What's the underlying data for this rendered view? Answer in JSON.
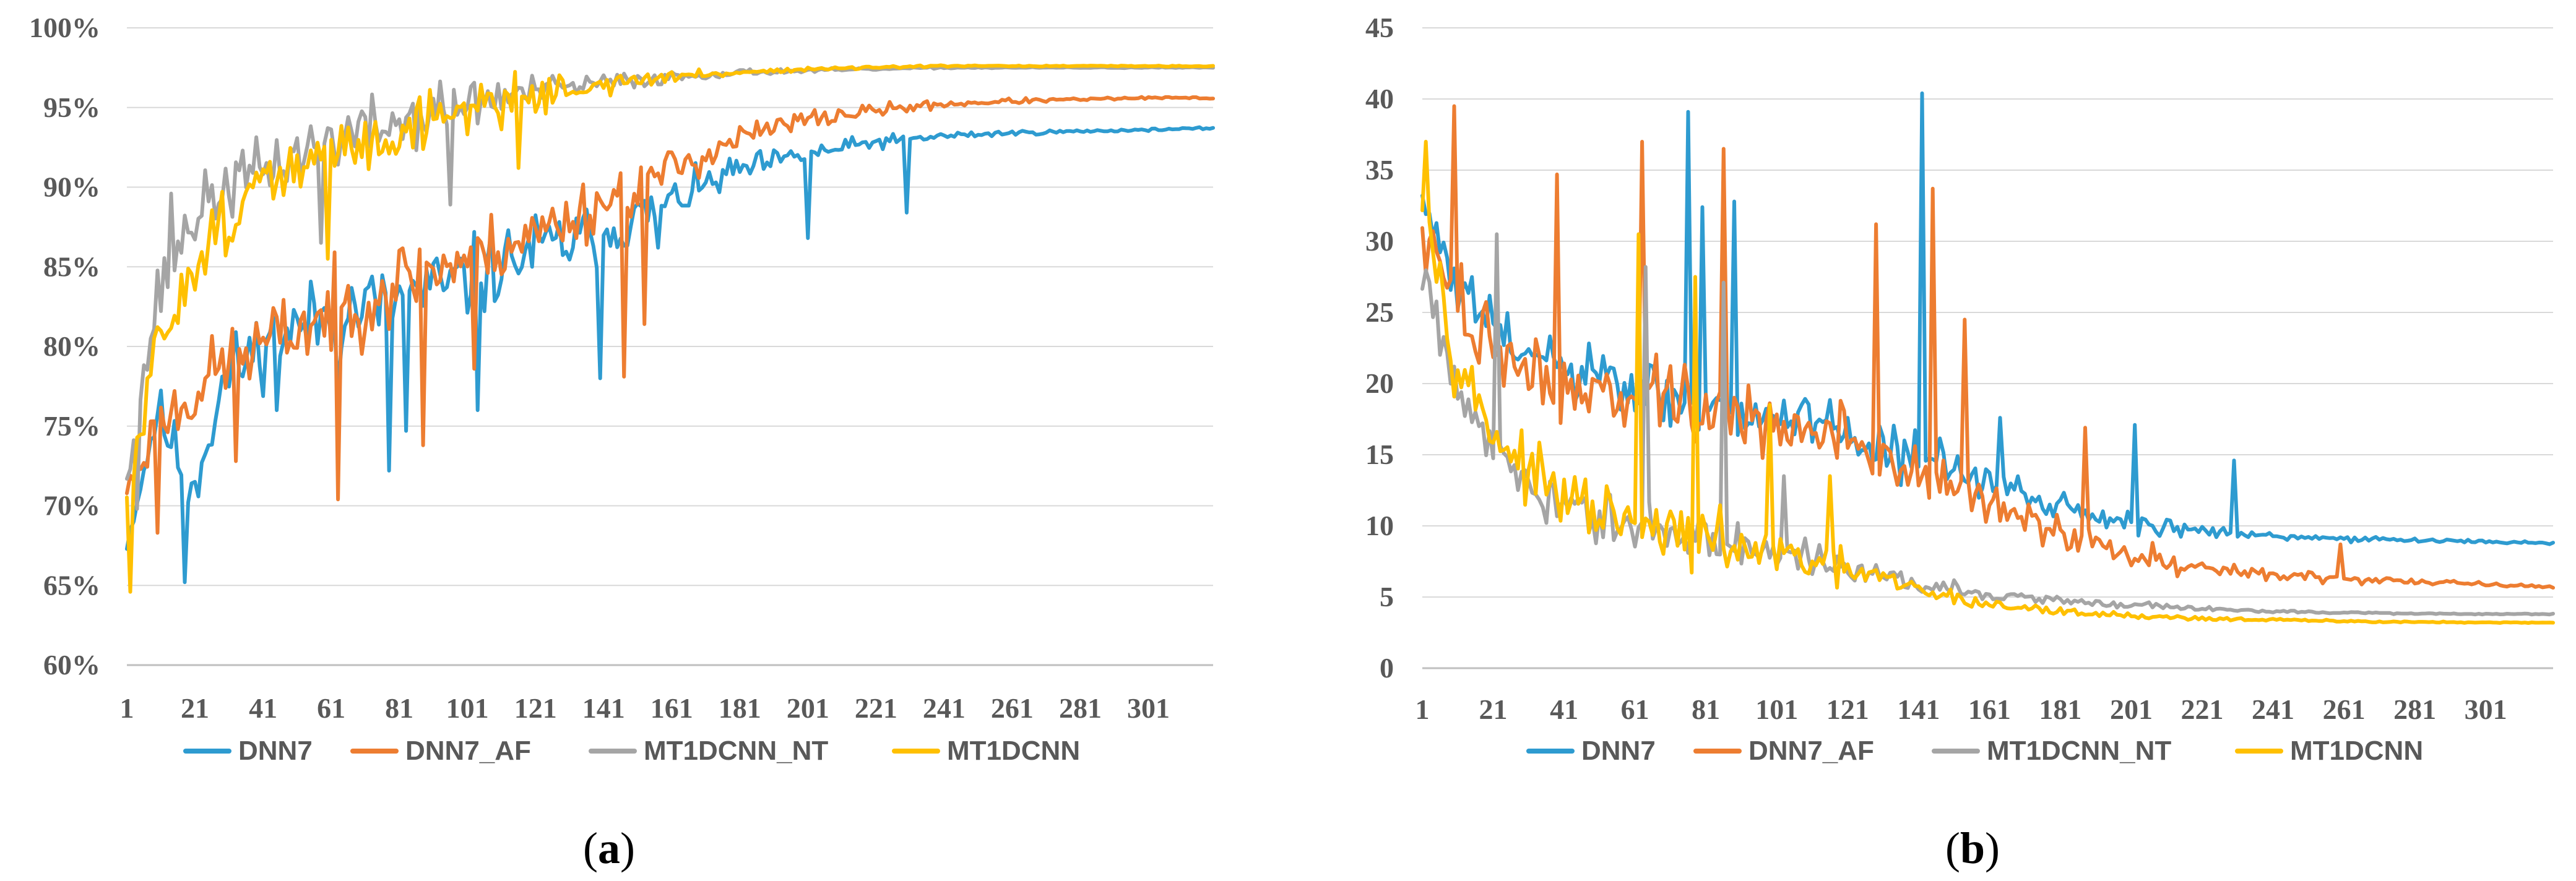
{
  "colors": {
    "DNN7": "#2e9bd0",
    "DNN7_AF": "#ed7d31",
    "MT1DCNN_NT": "#a5a5a5",
    "MT1DCNN": "#ffc000"
  },
  "chart_data": [
    {
      "id": "a",
      "type": "line",
      "panel_label": "a",
      "title": "",
      "xlabel": "",
      "ylabel": "",
      "x_range": [
        1,
        320
      ],
      "x_ticks": [
        "1",
        "21",
        "41",
        "61",
        "81",
        "101",
        "121",
        "141",
        "161",
        "181",
        "201",
        "221",
        "241",
        "261",
        "281",
        "301"
      ],
      "ylim": [
        60,
        100
      ],
      "y_ticks": [
        60,
        65,
        70,
        75,
        80,
        85,
        90,
        95,
        100
      ],
      "y_tick_labels": [
        "60%",
        "65%",
        "70%",
        "75%",
        "80%",
        "85%",
        "90%",
        "95%",
        "100%"
      ],
      "legend": [
        "DNN7",
        "DNN7_AF",
        "MT1DCNN_NT",
        "MT1DCNN"
      ],
      "legend_position": "bottom",
      "series": [
        {
          "name": "DNN7",
          "key": "DNN7",
          "x": [
            1,
            10,
            20,
            30,
            40,
            60,
            80,
            100,
            120,
            140,
            160,
            180,
            200,
            220,
            240,
            260,
            280,
            300,
            320
          ],
          "values": [
            67.5,
            76,
            71,
            78,
            80,
            82,
            83,
            84,
            86,
            87,
            89,
            91,
            92,
            92.8,
            93.2,
            93.4,
            93.5,
            93.6,
            93.7
          ],
          "noise": [
            0.5,
            2.5,
            3.5,
            3.5,
            3.5,
            4,
            4,
            4,
            3.5,
            3,
            2,
            1.5,
            1,
            0.7,
            0.4,
            0.25,
            0.15,
            0.1,
            0.1
          ],
          "seed": 11,
          "dips": [
            [
              18,
              65.2
            ],
            [
              45,
              76
            ],
            [
              63,
              77.5
            ],
            [
              78,
              72.2
            ],
            [
              83,
              74.7
            ],
            [
              104,
              76
            ],
            [
              140,
              78
            ],
            [
              157,
              86.2
            ],
            [
              201,
              86.8
            ],
            [
              230,
              88.4
            ]
          ]
        },
        {
          "name": "DNN7_AF",
          "key": "DNN7_AF",
          "x": [
            1,
            10,
            20,
            30,
            40,
            60,
            80,
            100,
            120,
            140,
            160,
            180,
            200,
            220,
            240,
            260,
            280,
            300,
            320
          ],
          "values": [
            71,
            75,
            77,
            79,
            80,
            82,
            84,
            85.5,
            87,
            89,
            91,
            93,
            94.2,
            94.8,
            95.2,
            95.4,
            95.5,
            95.6,
            95.6
          ],
          "noise": [
            1,
            3,
            3.5,
            3.5,
            3.5,
            4,
            4,
            3.5,
            3,
            3,
            2,
            1.5,
            1,
            0.6,
            0.4,
            0.25,
            0.15,
            0.1,
            0.1
          ],
          "seed": 23,
          "dips": [
            [
              10,
              68.3
            ],
            [
              33,
              72.8
            ],
            [
              63,
              70.4
            ],
            [
              88,
              73.8
            ],
            [
              103,
              78.6
            ],
            [
              147,
              78.1
            ],
            [
              153,
              81.4
            ]
          ]
        },
        {
          "name": "MT1DCNN_NT",
          "key": "MT1DCNN_NT",
          "x": [
            1,
            10,
            20,
            30,
            40,
            60,
            80,
            100,
            120,
            140,
            160,
            180,
            200,
            220,
            240,
            260,
            280,
            300,
            320
          ],
          "values": [
            72,
            83,
            88,
            90,
            91,
            93,
            94,
            95.2,
            96,
            96.5,
            96.9,
            97.2,
            97.3,
            97.4,
            97.5,
            97.5,
            97.5,
            97.5,
            97.5
          ],
          "noise": [
            1,
            3,
            3,
            3,
            3,
            3,
            3,
            2.5,
            1.5,
            1,
            0.6,
            0.3,
            0.2,
            0.1,
            0.08,
            0.05,
            0.05,
            0.05,
            0.05
          ],
          "seed": 37,
          "dips": [
            [
              4,
              69.8
            ],
            [
              14,
              89.6
            ],
            [
              58,
              86.5
            ],
            [
              96,
              88.9
            ]
          ]
        },
        {
          "name": "MT1DCNN",
          "key": "MT1DCNN",
          "x": [
            1,
            10,
            20,
            30,
            40,
            60,
            80,
            100,
            120,
            140,
            160,
            180,
            200,
            220,
            240,
            260,
            280,
            300,
            320
          ],
          "values": [
            70,
            80,
            85,
            88,
            90,
            92,
            93.5,
            95,
            95.8,
            96.4,
            96.9,
            97.2,
            97.4,
            97.5,
            97.6,
            97.6,
            97.6,
            97.6,
            97.6
          ],
          "noise": [
            2,
            3,
            3,
            3,
            3,
            3,
            3,
            2.5,
            1.8,
            1,
            0.6,
            0.3,
            0.2,
            0.1,
            0.08,
            0.05,
            0.05,
            0.05,
            0.05
          ],
          "seed": 51,
          "dips": [
            [
              2,
              64.6
            ],
            [
              60,
              85.5
            ],
            [
              116,
              91.2
            ]
          ]
        }
      ]
    },
    {
      "id": "b",
      "type": "line",
      "panel_label": "b",
      "title": "",
      "xlabel": "",
      "ylabel": "",
      "x_range": [
        1,
        320
      ],
      "x_ticks": [
        "1",
        "21",
        "41",
        "61",
        "81",
        "101",
        "121",
        "141",
        "161",
        "181",
        "201",
        "221",
        "241",
        "261",
        "281",
        "301"
      ],
      "ylim": [
        0,
        45
      ],
      "y_ticks": [
        0,
        5,
        10,
        15,
        20,
        25,
        30,
        35,
        40,
        45
      ],
      "y_tick_labels": [
        "0",
        "5",
        "10",
        "15",
        "20",
        "25",
        "30",
        "35",
        "40",
        "45"
      ],
      "legend": [
        "DNN7",
        "DNN7_AF",
        "MT1DCNN_NT",
        "MT1DCNN"
      ],
      "legend_position": "bottom",
      "series": [
        {
          "name": "DNN7",
          "key": "DNN7",
          "x": [
            1,
            10,
            20,
            30,
            40,
            60,
            80,
            100,
            120,
            140,
            160,
            180,
            200,
            220,
            240,
            260,
            280,
            300,
            320
          ],
          "values": [
            33,
            27,
            24,
            22,
            21,
            19.5,
            18.5,
            17.5,
            16.5,
            15,
            13,
            11.5,
            10.3,
            9.6,
            9.3,
            9.1,
            9.0,
            8.9,
            8.8
          ],
          "noise": [
            2,
            3,
            3.5,
            3.5,
            3.5,
            3.5,
            3.5,
            3,
            3,
            3,
            2,
            1.5,
            1.2,
            0.8,
            0.5,
            0.35,
            0.25,
            0.15,
            0.1
          ],
          "seed": 61,
          "dips": [
            [
              76,
              39.1
            ],
            [
              80,
              32.4
            ],
            [
              89,
              32.8
            ],
            [
              142,
              40.4
            ],
            [
              164,
              17.6
            ],
            [
              202,
              17.1
            ],
            [
              230,
              14.6
            ]
          ]
        },
        {
          "name": "DNN7_AF",
          "key": "DNN7_AF",
          "x": [
            1,
            10,
            20,
            30,
            40,
            60,
            80,
            100,
            120,
            140,
            160,
            180,
            200,
            220,
            240,
            260,
            280,
            300,
            320
          ],
          "values": [
            30,
            26,
            23,
            21,
            20,
            19,
            18,
            17,
            16,
            14,
            11.5,
            9.5,
            8,
            7.2,
            6.6,
            6.3,
            6.1,
            5.9,
            5.7
          ],
          "noise": [
            3,
            4,
            4,
            4,
            4,
            4,
            4,
            3.5,
            3.5,
            3.5,
            2.5,
            2,
            1.5,
            1,
            0.6,
            0.5,
            0.35,
            0.2,
            0.15
          ],
          "seed": 73,
          "dips": [
            [
              10,
              39.5
            ],
            [
              39,
              34.7
            ],
            [
              63,
              37
            ],
            [
              86,
              36.5
            ],
            [
              129,
              31.2
            ],
            [
              145,
              33.7
            ],
            [
              154,
              24.5
            ],
            [
              188,
              16.9
            ],
            [
              260,
              8.7
            ]
          ]
        },
        {
          "name": "MT1DCNN_NT",
          "key": "MT1DCNN_NT",
          "x": [
            1,
            10,
            20,
            30,
            40,
            60,
            80,
            100,
            120,
            140,
            160,
            180,
            200,
            220,
            240,
            260,
            280,
            300,
            320
          ],
          "values": [
            28,
            20,
            16,
            13,
            11.5,
            10,
            9,
            8,
            7,
            6,
            5.2,
            4.8,
            4.5,
            4.2,
            4.0,
            3.9,
            3.85,
            3.8,
            3.8
          ],
          "noise": [
            3,
            3,
            3,
            2.5,
            2.5,
            2.5,
            2,
            2,
            1.5,
            1.2,
            0.7,
            0.5,
            0.35,
            0.25,
            0.15,
            0.1,
            0.08,
            0.05,
            0.05
          ],
          "seed": 87,
          "dips": [
            [
              22,
              30.5
            ],
            [
              64,
              28.2
            ],
            [
              86,
              27.1
            ],
            [
              103,
              13.5
            ]
          ]
        },
        {
          "name": "MT1DCNN",
          "key": "MT1DCNN",
          "x": [
            1,
            10,
            20,
            30,
            40,
            60,
            80,
            100,
            120,
            140,
            160,
            180,
            200,
            220,
            240,
            260,
            280,
            300,
            320
          ],
          "values": [
            34,
            22,
            17,
            14,
            12,
            10,
            9,
            8,
            7,
            5.5,
            4.5,
            4.0,
            3.7,
            3.5,
            3.4,
            3.3,
            3.25,
            3.2,
            3.2
          ],
          "noise": [
            3,
            3,
            3,
            3,
            3,
            3,
            3,
            2.5,
            2,
            1.2,
            0.6,
            0.4,
            0.3,
            0.2,
            0.15,
            0.1,
            0.08,
            0.05,
            0.05
          ],
          "seed": 97,
          "dips": [
            [
              2,
              37
            ],
            [
              62,
              30.5
            ],
            [
              78,
              27.5
            ],
            [
              99,
              18.5
            ],
            [
              116,
              13.5
            ]
          ]
        }
      ]
    }
  ]
}
